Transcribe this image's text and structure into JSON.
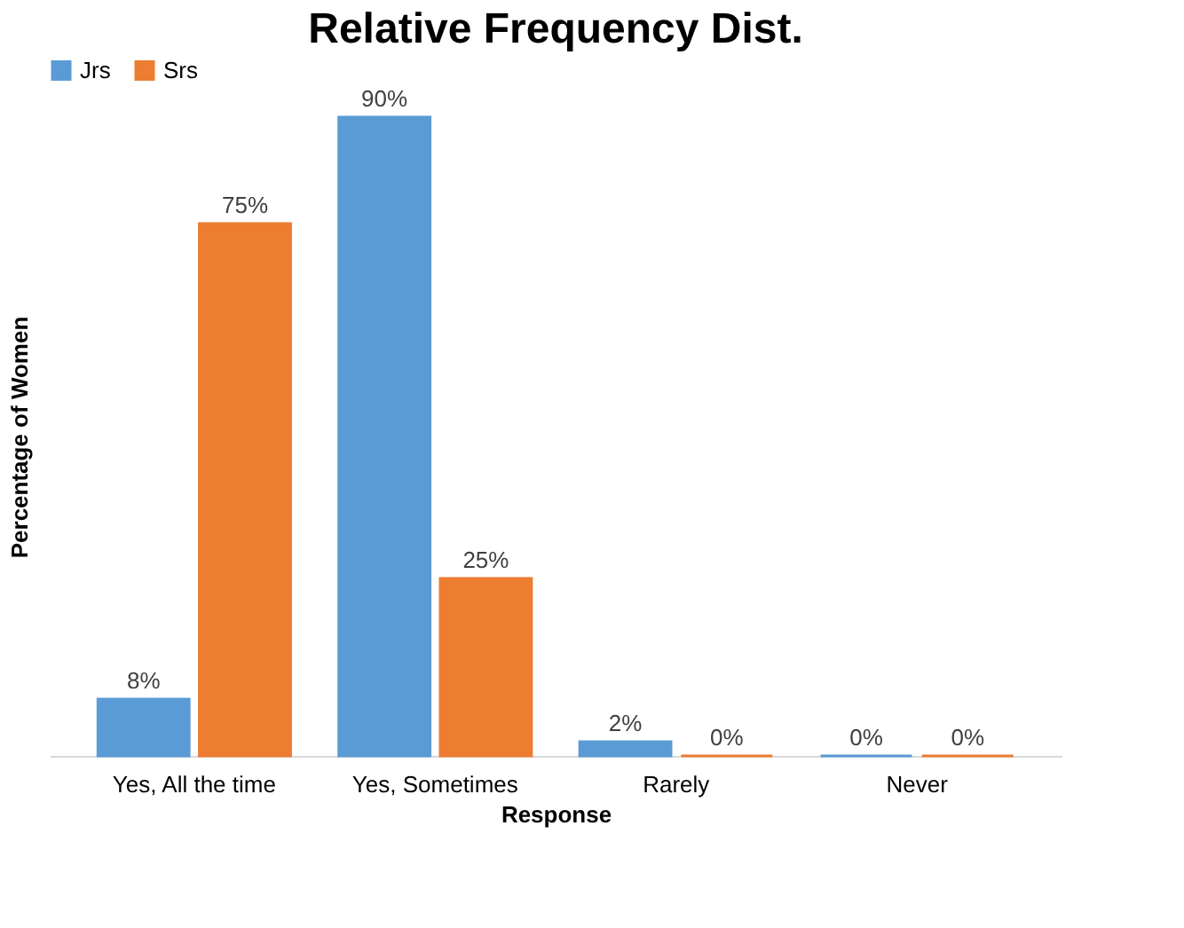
{
  "chart_data": {
    "type": "bar",
    "title": "Relative Frequency Dist.",
    "xlabel": "Response",
    "ylabel": "Percentage of Women",
    "categories": [
      "Yes, All the time",
      "Yes, Sometimes",
      "Rarely",
      "Never"
    ],
    "series": [
      {
        "name": "Jrs",
        "color": "#5b9bd5",
        "values": [
          8,
          90,
          2,
          0
        ],
        "value_labels": [
          "8%",
          "90%",
          "2%",
          "0%"
        ]
      },
      {
        "name": "Srs",
        "color": "#ed7d31",
        "values": [
          75,
          25,
          0,
          0
        ],
        "value_labels": [
          "75%",
          "25%",
          "0%",
          "0%"
        ]
      }
    ],
    "legend": "top",
    "grid": false,
    "tick_labels": "x"
  }
}
